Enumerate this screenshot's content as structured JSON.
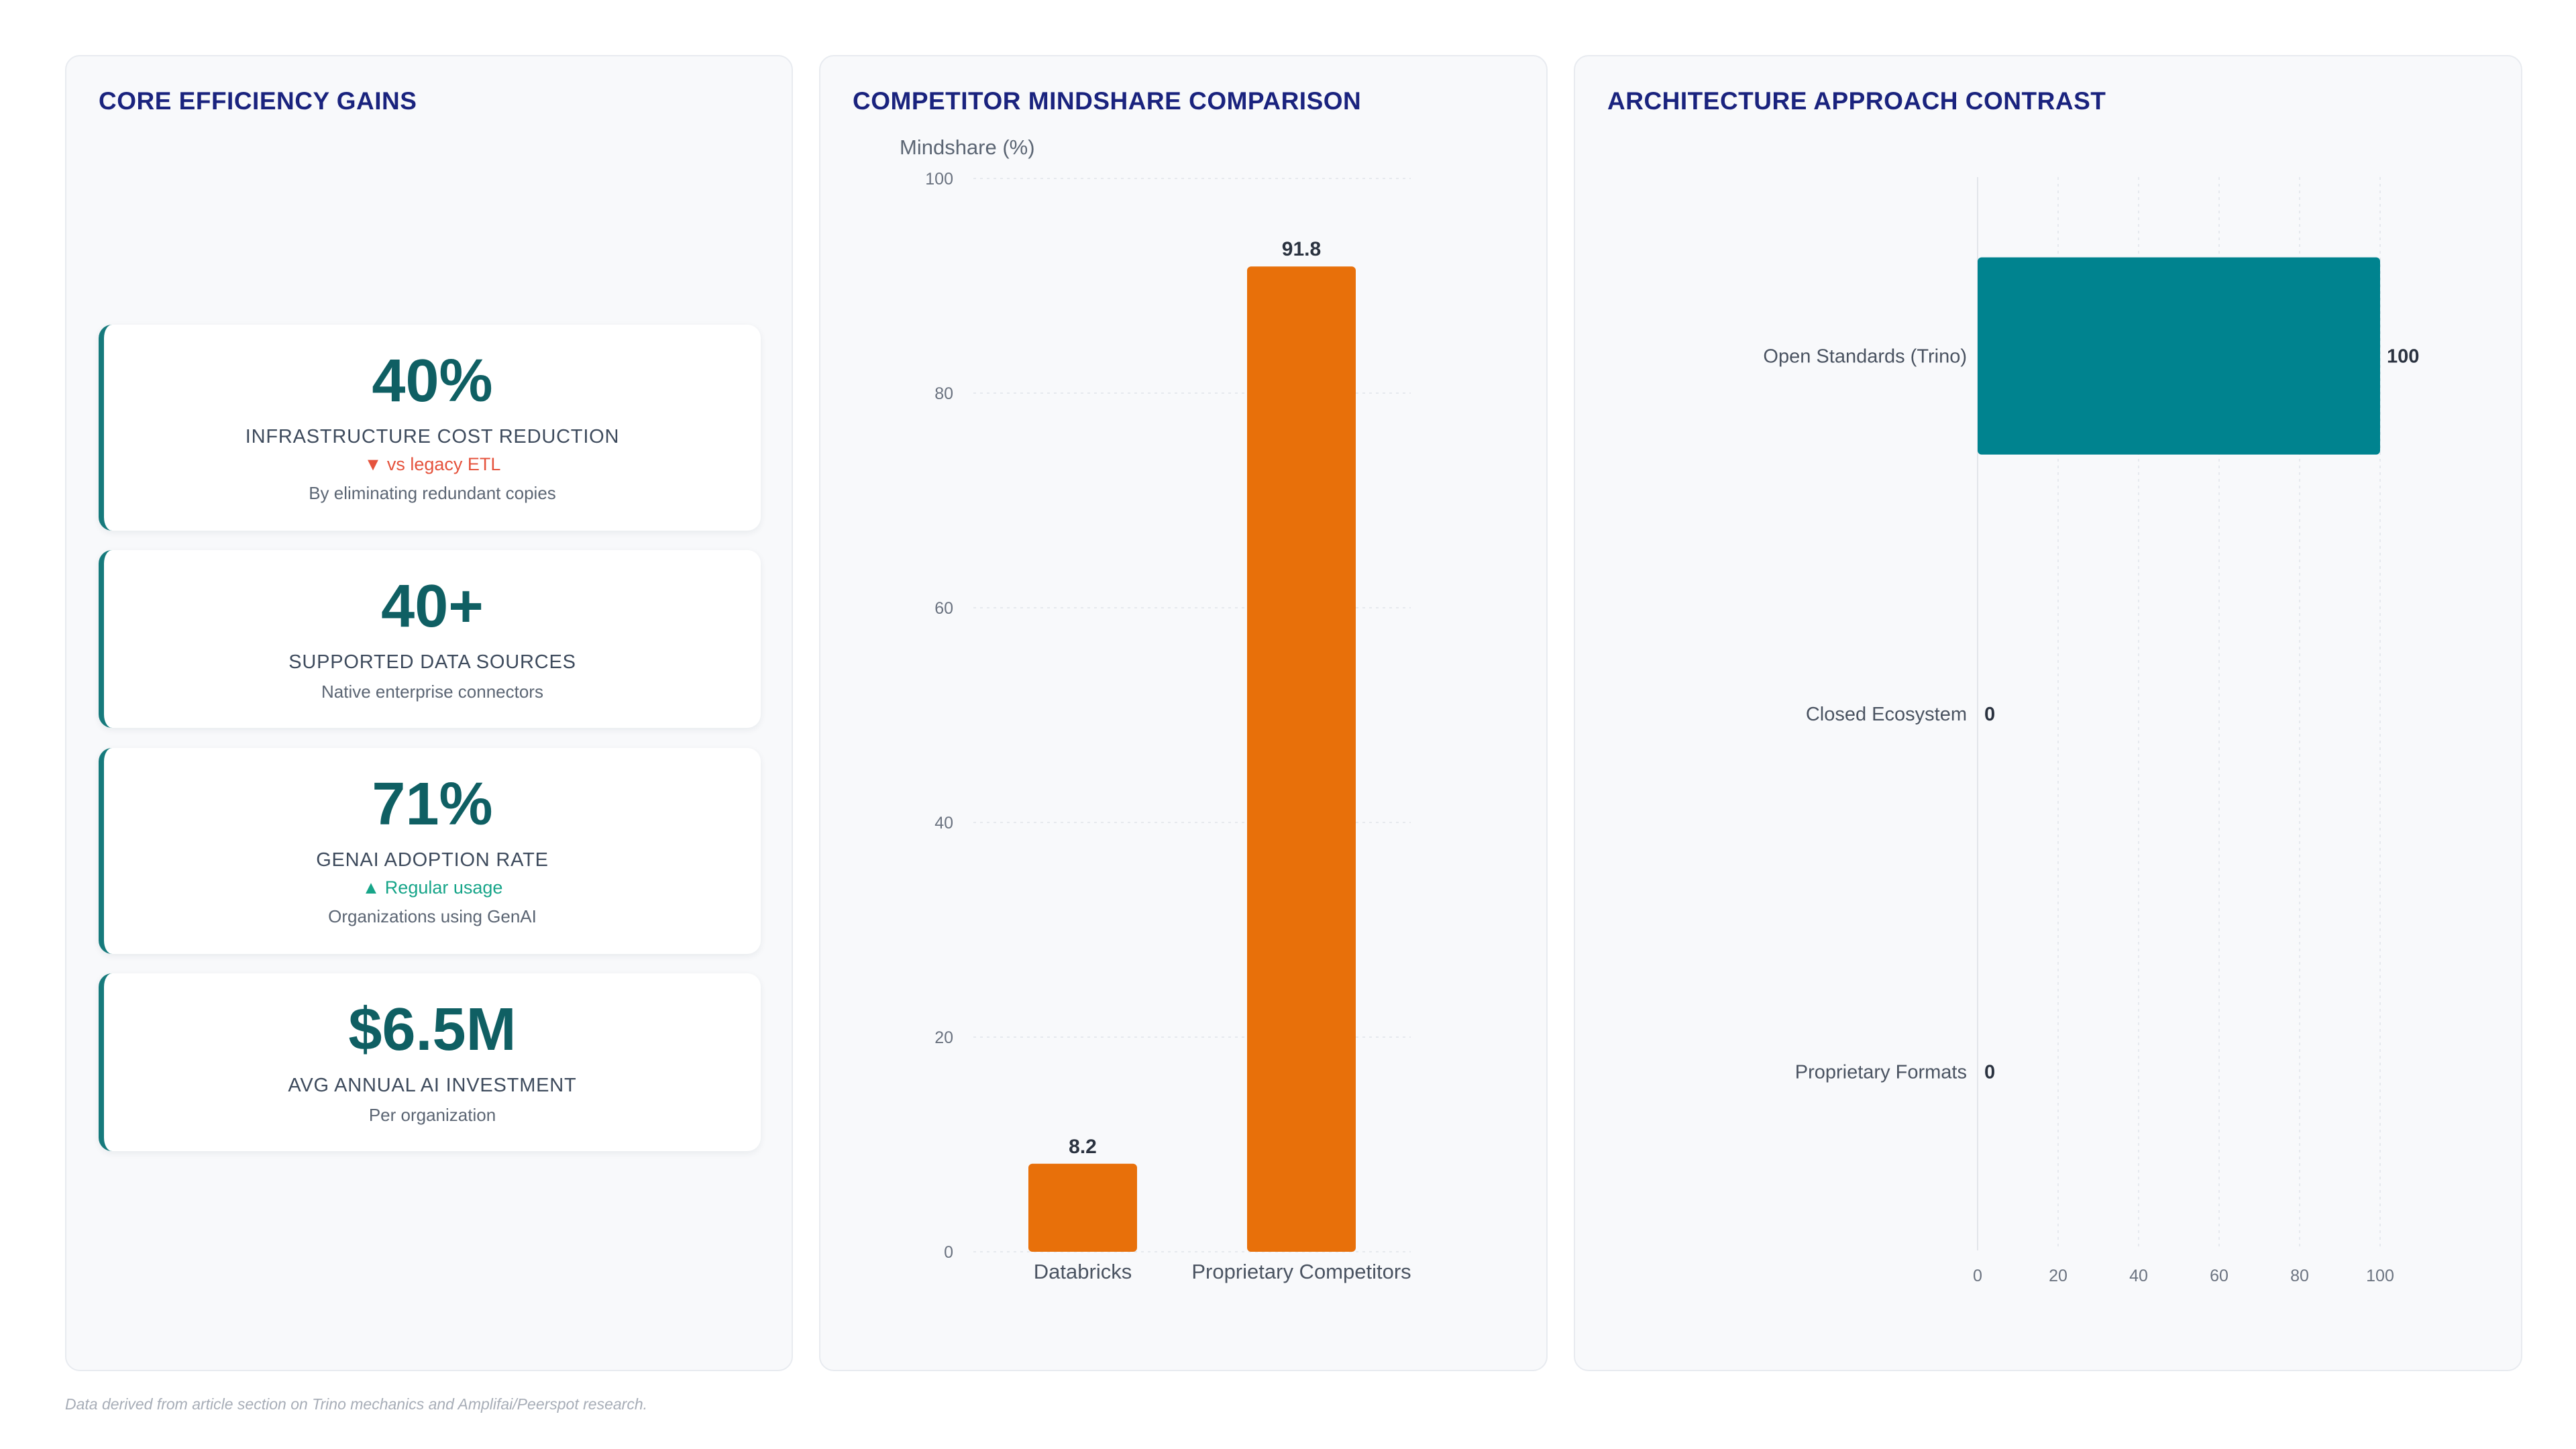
{
  "kpi_panel": {
    "title": "CORE EFFICIENCY GAINS",
    "cards": [
      {
        "value": "40%",
        "label": "INFRASTRUCTURE COST REDUCTION",
        "delta": "▼ vs legacy ETL",
        "delta_dir": "down",
        "note": "By eliminating redundant copies"
      },
      {
        "value": "40+",
        "label": "SUPPORTED DATA SOURCES",
        "delta": "",
        "delta_dir": "",
        "note": "Native enterprise connectors"
      },
      {
        "value": "71%",
        "label": "GENAI ADOPTION RATE",
        "delta": "▲ Regular usage",
        "delta_dir": "up",
        "note": "Organizations using GenAI"
      },
      {
        "value": "$6.5M",
        "label": "AVG ANNUAL AI INVESTMENT",
        "delta": "",
        "delta_dir": "",
        "note": "Per organization"
      }
    ]
  },
  "mindshare_panel": {
    "title": "COMPETITOR MINDSHARE COMPARISON"
  },
  "architecture_panel": {
    "title": "ARCHITECTURE APPROACH CONTRAST"
  },
  "footnote": "Data derived from article section on Trino mechanics and Amplifai/Peerspot research.",
  "chart_data": [
    {
      "type": "bar",
      "orientation": "vertical",
      "title": "COMPETITOR MINDSHARE COMPARISON",
      "ylabel": "Mindshare (%)",
      "xlabel": "",
      "categories": [
        "Databricks",
        "Proprietary Competitors"
      ],
      "values": [
        8.2,
        91.8
      ],
      "value_labels": [
        "8.2",
        "91.8"
      ],
      "ylim": [
        0,
        100
      ],
      "yticks": [
        0,
        20,
        40,
        60,
        80,
        100
      ],
      "color": "#e8700a",
      "grid": true,
      "legend": "none"
    },
    {
      "type": "bar",
      "orientation": "horizontal",
      "title": "ARCHITECTURE APPROACH CONTRAST",
      "categories": [
        "Open Standards (Trino)",
        "Closed Ecosystem",
        "Proprietary Formats"
      ],
      "values": [
        100,
        0,
        0
      ],
      "value_labels": [
        "100",
        "0",
        "0"
      ],
      "xlim": [
        0,
        100
      ],
      "xticks": [
        0,
        20,
        40,
        60,
        80,
        100
      ],
      "color": "#00838f",
      "grid": true,
      "legend": "none"
    }
  ]
}
